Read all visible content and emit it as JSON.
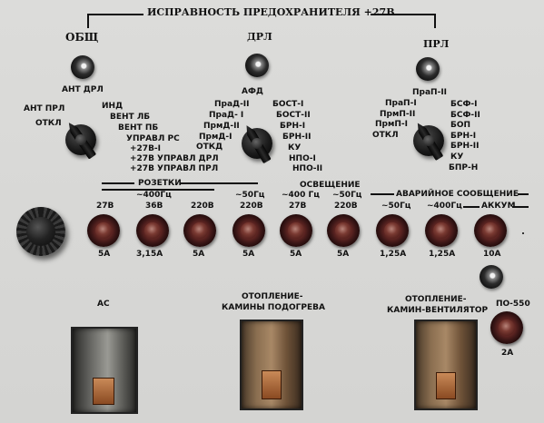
{
  "header": {
    "title": "ИСПРАВНОСТЬ ПРЕДОХРАНИТЕЛЯ +27В"
  },
  "groups": {
    "obsh": "ОБЩ",
    "drl": "ДРЛ",
    "prl": "ПРЛ"
  },
  "lamps": {
    "ant_drl": "АНТ ДРЛ",
    "afd": "АФД",
    "prap2": "ПраП-II"
  },
  "switch_left": {
    "positions": [
      "АНТ ПРЛ",
      "ОТКЛ",
      "ИНД",
      "ВЕНТ ЛБ",
      "ВЕНТ ПБ",
      "УПРАВЛ РС",
      "+27В-I",
      "+27В УПРАВЛ ДРЛ",
      "+27В УПРАВЛ ПРЛ"
    ]
  },
  "switch_mid": {
    "left_positions": [
      "ПраД-II",
      "ПраД- I",
      "ПрмД-II",
      "ПрмД-I",
      "ОТКД"
    ],
    "right_positions": [
      "БОСТ-I",
      "БОСТ-II",
      "БРН-I",
      "БРН-II",
      "КУ",
      "НПО-I",
      "НПО-II"
    ]
  },
  "switch_right": {
    "left_positions": [
      "ПраП-I",
      "ПрмП-II",
      "ПрмП-I",
      "ОТКЛ"
    ],
    "right_positions": [
      "БСФ-I",
      "БСФ-II",
      "БОП",
      "БРН-I",
      "БРН-II",
      "КУ",
      "БПР-Н"
    ]
  },
  "sections": {
    "rozetki": "РОЗЕТКИ",
    "osveshchenie": "ОСВЕЩЕНИЕ",
    "avariynoe": "АВАРИЙНОЕ СООБЩЕНИЕ",
    "akkum": "АККУМ"
  },
  "sub_labels": {
    "hz400_a": "~400Гц",
    "hz50_a": "~50Гц",
    "hz400_b": "~400 Гц",
    "hz50_b": "~50Гц",
    "hz50_c": "~50Гц",
    "hz400_c": "~400Гц"
  },
  "fuses": [
    {
      "top": "27В",
      "bottom": "5А"
    },
    {
      "top": "36В",
      "bottom": "3,15А"
    },
    {
      "top": "220В",
      "bottom": "5А"
    },
    {
      "top": "220В",
      "bottom": "5А"
    },
    {
      "top": "27В",
      "bottom": "5А"
    },
    {
      "top": "220В",
      "bottom": "5А"
    },
    {
      "top": "",
      "bottom": "1,25А"
    },
    {
      "top": "",
      "bottom": "1,25А"
    },
    {
      "top": "",
      "bottom": "10А"
    }
  ],
  "toggles": {
    "ac": "АС",
    "heat1_line1": "ОТОПЛЕНИЕ-",
    "heat1_line2": "КАМИНЫ ПОДОГРЕВА",
    "heat2_line1": "ОТОПЛЕНИЕ-",
    "heat2_line2": "КАМИН-ВЕНТИЛЯТОР"
  },
  "po550": {
    "label": "ПО-550",
    "fuse": "2А"
  }
}
